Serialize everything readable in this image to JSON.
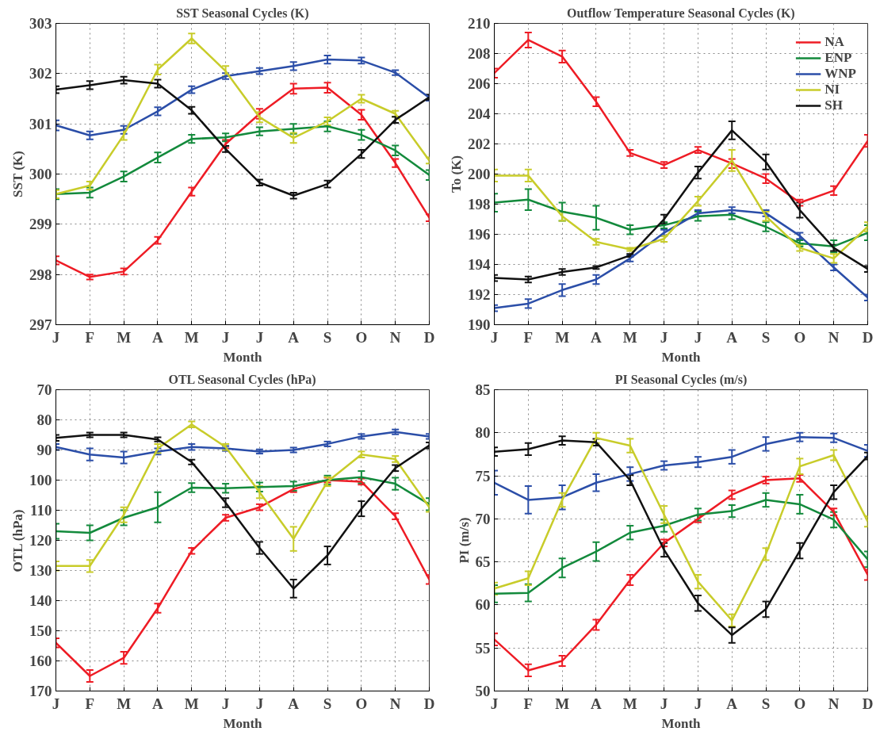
{
  "chart_data": [
    {
      "type": "line",
      "title": "SST Seasonal Cycles (K)",
      "xlabel": "Month",
      "ylabel": "SST (K)",
      "categories": [
        "J",
        "F",
        "M",
        "A",
        "M",
        "J",
        "J",
        "A",
        "S",
        "O",
        "N",
        "D"
      ],
      "ylim": [
        297,
        303
      ],
      "yticks": [
        297,
        298,
        299,
        300,
        301,
        302,
        303
      ],
      "grid": true,
      "legend": false,
      "series": [
        {
          "color": "#ee1c25",
          "values": [
            298.28,
            297.95,
            298.06,
            298.68,
            299.65,
            300.6,
            301.2,
            301.7,
            301.72,
            301.18,
            300.22,
            299.13
          ],
          "errors": [
            0.08,
            0.05,
            0.06,
            0.07,
            0.08,
            0.08,
            0.1,
            0.1,
            0.1,
            0.1,
            0.08,
            0.07
          ]
        },
        {
          "color": "#138a3c",
          "values": [
            299.6,
            299.63,
            299.95,
            300.33,
            300.7,
            300.73,
            300.85,
            300.9,
            300.95,
            300.78,
            300.47,
            299.98
          ],
          "errors": [
            0.1,
            0.1,
            0.1,
            0.1,
            0.08,
            0.08,
            0.08,
            0.1,
            0.1,
            0.1,
            0.1,
            0.1
          ]
        },
        {
          "color": "#2b4ea8",
          "values": [
            300.97,
            300.77,
            300.88,
            301.25,
            301.68,
            301.95,
            302.05,
            302.15,
            302.28,
            302.26,
            302.02,
            301.52
          ],
          "errors": [
            0.1,
            0.08,
            0.08,
            0.08,
            0.07,
            0.06,
            0.06,
            0.08,
            0.08,
            0.06,
            0.05,
            0.06
          ]
        },
        {
          "color": "#c8cc2a",
          "values": [
            299.6,
            299.77,
            300.78,
            302.08,
            302.7,
            302.05,
            301.13,
            300.72,
            301.05,
            301.5,
            301.2,
            300.27
          ],
          "errors": [
            0.08,
            0.08,
            0.1,
            0.1,
            0.1,
            0.1,
            0.1,
            0.1,
            0.08,
            0.08,
            0.06,
            0.06
          ]
        },
        {
          "color": "#111111",
          "values": [
            301.68,
            301.77,
            301.87,
            301.8,
            301.27,
            300.5,
            299.83,
            299.57,
            299.8,
            300.4,
            301.08,
            301.53
          ],
          "errors": [
            0.07,
            0.08,
            0.07,
            0.08,
            0.07,
            0.06,
            0.06,
            0.06,
            0.07,
            0.08,
            0.06,
            0.05
          ]
        }
      ]
    },
    {
      "type": "line",
      "title": "Outflow Temperature Seasonal Cycles (K)",
      "xlabel": "Month",
      "ylabel": "To (K)",
      "categories": [
        "J",
        "F",
        "M",
        "A",
        "M",
        "J",
        "J",
        "A",
        "S",
        "O",
        "N",
        "D"
      ],
      "ylim": [
        190,
        210
      ],
      "yticks": [
        190,
        192,
        194,
        196,
        198,
        200,
        202,
        204,
        206,
        208,
        210
      ],
      "grid": true,
      "legend": "top right",
      "series": [
        {
          "name": "NA",
          "color": "#ee1c25",
          "values": [
            206.7,
            208.9,
            207.8,
            204.8,
            201.4,
            200.6,
            201.6,
            200.7,
            199.7,
            198.1,
            198.9,
            202.2
          ],
          "errors": [
            0.3,
            0.5,
            0.4,
            0.3,
            0.2,
            0.2,
            0.2,
            0.3,
            0.3,
            0.2,
            0.3,
            0.4
          ]
        },
        {
          "name": "ENP",
          "color": "#138a3c",
          "values": [
            198.1,
            198.3,
            197.5,
            197.1,
            196.3,
            196.6,
            197.2,
            197.3,
            196.5,
            195.4,
            195.2,
            196.1
          ],
          "errors": [
            0.6,
            0.7,
            0.6,
            0.8,
            0.3,
            0.2,
            0.3,
            0.3,
            0.3,
            0.2,
            0.4,
            0.5
          ]
        },
        {
          "name": "WNP",
          "color": "#2b4ea8",
          "values": [
            191.1,
            191.4,
            192.3,
            193.0,
            194.4,
            196.1,
            197.4,
            197.6,
            197.4,
            195.9,
            193.8,
            191.8
          ],
          "errors": [
            0.2,
            0.3,
            0.4,
            0.3,
            0.2,
            0.2,
            0.2,
            0.2,
            0.2,
            0.2,
            0.2,
            0.2
          ]
        },
        {
          "name": "NI",
          "color": "#c8cc2a",
          "values": [
            199.9,
            199.9,
            197.2,
            195.5,
            195.0,
            195.7,
            198.2,
            200.9,
            197.2,
            195.1,
            194.4,
            196.5
          ],
          "errors": [
            0.4,
            0.4,
            0.3,
            0.2,
            0.1,
            0.2,
            0.3,
            0.7,
            0.3,
            0.2,
            0.3,
            0.3
          ]
        },
        {
          "name": "SH",
          "color": "#111111",
          "values": [
            193.1,
            193.0,
            193.5,
            193.8,
            194.6,
            197.0,
            200.1,
            202.9,
            200.8,
            197.6,
            195.1,
            193.7
          ],
          "errors": [
            0.2,
            0.2,
            0.2,
            0.1,
            0.1,
            0.3,
            0.4,
            0.6,
            0.5,
            0.5,
            0.2,
            0.2
          ]
        }
      ]
    },
    {
      "type": "line",
      "title": "OTL Seasonal Cycles (hPa)",
      "xlabel": "Month",
      "ylabel": "OTL (hPa)",
      "categories": [
        "J",
        "F",
        "M",
        "A",
        "M",
        "J",
        "J",
        "A",
        "S",
        "O",
        "N",
        "D"
      ],
      "ylim": [
        170,
        70
      ],
      "yticks": [
        70,
        80,
        90,
        100,
        110,
        120,
        130,
        140,
        150,
        160,
        170
      ],
      "grid": true,
      "legend": false,
      "series": [
        {
          "color": "#ee1c25",
          "values": [
            154,
            165,
            159,
            142.5,
            123.5,
            112.5,
            109,
            103,
            100,
            100.5,
            112,
            133
          ],
          "errors": [
            1.5,
            2,
            2,
            1.5,
            1,
            1,
            1,
            1,
            0.8,
            1,
            1,
            1.5
          ]
        },
        {
          "color": "#138a3c",
          "values": [
            117,
            117.5,
            112.5,
            109,
            102.5,
            102.7,
            102.3,
            102,
            100,
            99,
            101.2,
            108
          ],
          "errors": [
            2.5,
            2.5,
            2.5,
            5,
            1.5,
            1.5,
            1.5,
            1.5,
            1.5,
            2,
            2,
            2
          ]
        },
        {
          "color": "#2b4ea8",
          "values": [
            89,
            91.5,
            92.5,
            90.5,
            89,
            89.5,
            90.5,
            90,
            88,
            85.5,
            84,
            85.5
          ],
          "errors": [
            1,
            2,
            2,
            1,
            1,
            0.8,
            0.7,
            0.8,
            0.8,
            0.8,
            0.8,
            0.8
          ]
        },
        {
          "color": "#c8cc2a",
          "values": [
            128.5,
            128.5,
            111.5,
            89.5,
            81.5,
            89,
            104,
            119.5,
            100.5,
            91.5,
            93,
            109
          ],
          "errors": [
            1.5,
            2,
            2.5,
            1.5,
            1,
            1,
            2,
            4,
            1.5,
            1,
            1,
            1.5
          ]
        },
        {
          "color": "#111111",
          "values": [
            86,
            85,
            85,
            86.5,
            94,
            107.5,
            122.5,
            136,
            125,
            109.5,
            96,
            88.5
          ],
          "errors": [
            1,
            0.8,
            0.8,
            0.7,
            0.8,
            1.5,
            2,
            3,
            3,
            2.5,
            1,
            1
          ]
        }
      ]
    },
    {
      "type": "line",
      "title": "PI Seasonal Cycles (m/s)",
      "xlabel": "Month",
      "ylabel": "PI (m/s)",
      "categories": [
        "J",
        "F",
        "M",
        "A",
        "M",
        "J",
        "J",
        "A",
        "S",
        "O",
        "N",
        "D"
      ],
      "ylim": [
        50,
        85
      ],
      "yticks": [
        50,
        55,
        60,
        65,
        70,
        75,
        80,
        85
      ],
      "grid": true,
      "legend": false,
      "series": [
        {
          "color": "#ee1c25",
          "values": [
            56,
            52.4,
            53.5,
            57.7,
            62.9,
            67.2,
            70,
            72.8,
            74.5,
            74.7,
            70.8,
            63.5
          ],
          "errors": [
            0.7,
            0.7,
            0.6,
            0.6,
            0.6,
            0.4,
            0.4,
            0.5,
            0.4,
            0.4,
            0.4,
            0.6
          ]
        },
        {
          "color": "#138a3c",
          "values": [
            61.3,
            61.4,
            64.3,
            66.2,
            68.4,
            69.2,
            70.5,
            70.9,
            72.2,
            71.7,
            69.9,
            65.3
          ],
          "errors": [
            1,
            1,
            1.1,
            1.1,
            0.8,
            0.7,
            0.7,
            0.7,
            0.8,
            1.1,
            0.9,
            0.9
          ]
        },
        {
          "color": "#2b4ea8",
          "values": [
            74.2,
            72.2,
            72.5,
            74.2,
            75.2,
            76.2,
            76.6,
            77.2,
            78.7,
            79.5,
            79.4,
            77.9
          ],
          "errors": [
            1.4,
            1.6,
            1.4,
            1,
            0.8,
            0.5,
            0.6,
            0.8,
            0.8,
            0.5,
            0.5,
            0.7
          ]
        },
        {
          "color": "#c8cc2a",
          "values": [
            61.9,
            63.1,
            72.2,
            79.4,
            78.5,
            70.5,
            62.7,
            58.2,
            65.9,
            76.1,
            77.4,
            69.7
          ],
          "errors": [
            0.7,
            0.8,
            0.8,
            0.6,
            0.8,
            1,
            0.8,
            0.7,
            0.7,
            0.9,
            0.6,
            0.6
          ]
        },
        {
          "color": "#111111",
          "values": [
            77.8,
            78.1,
            79.1,
            78.9,
            74.5,
            66.4,
            60.2,
            56.5,
            59.5,
            66.3,
            73.1,
            77.3
          ],
          "errors": [
            0.5,
            0.7,
            0.5,
            0.4,
            0.6,
            0.8,
            0.9,
            0.9,
            0.9,
            0.9,
            0.8,
            0.4
          ]
        }
      ]
    }
  ]
}
